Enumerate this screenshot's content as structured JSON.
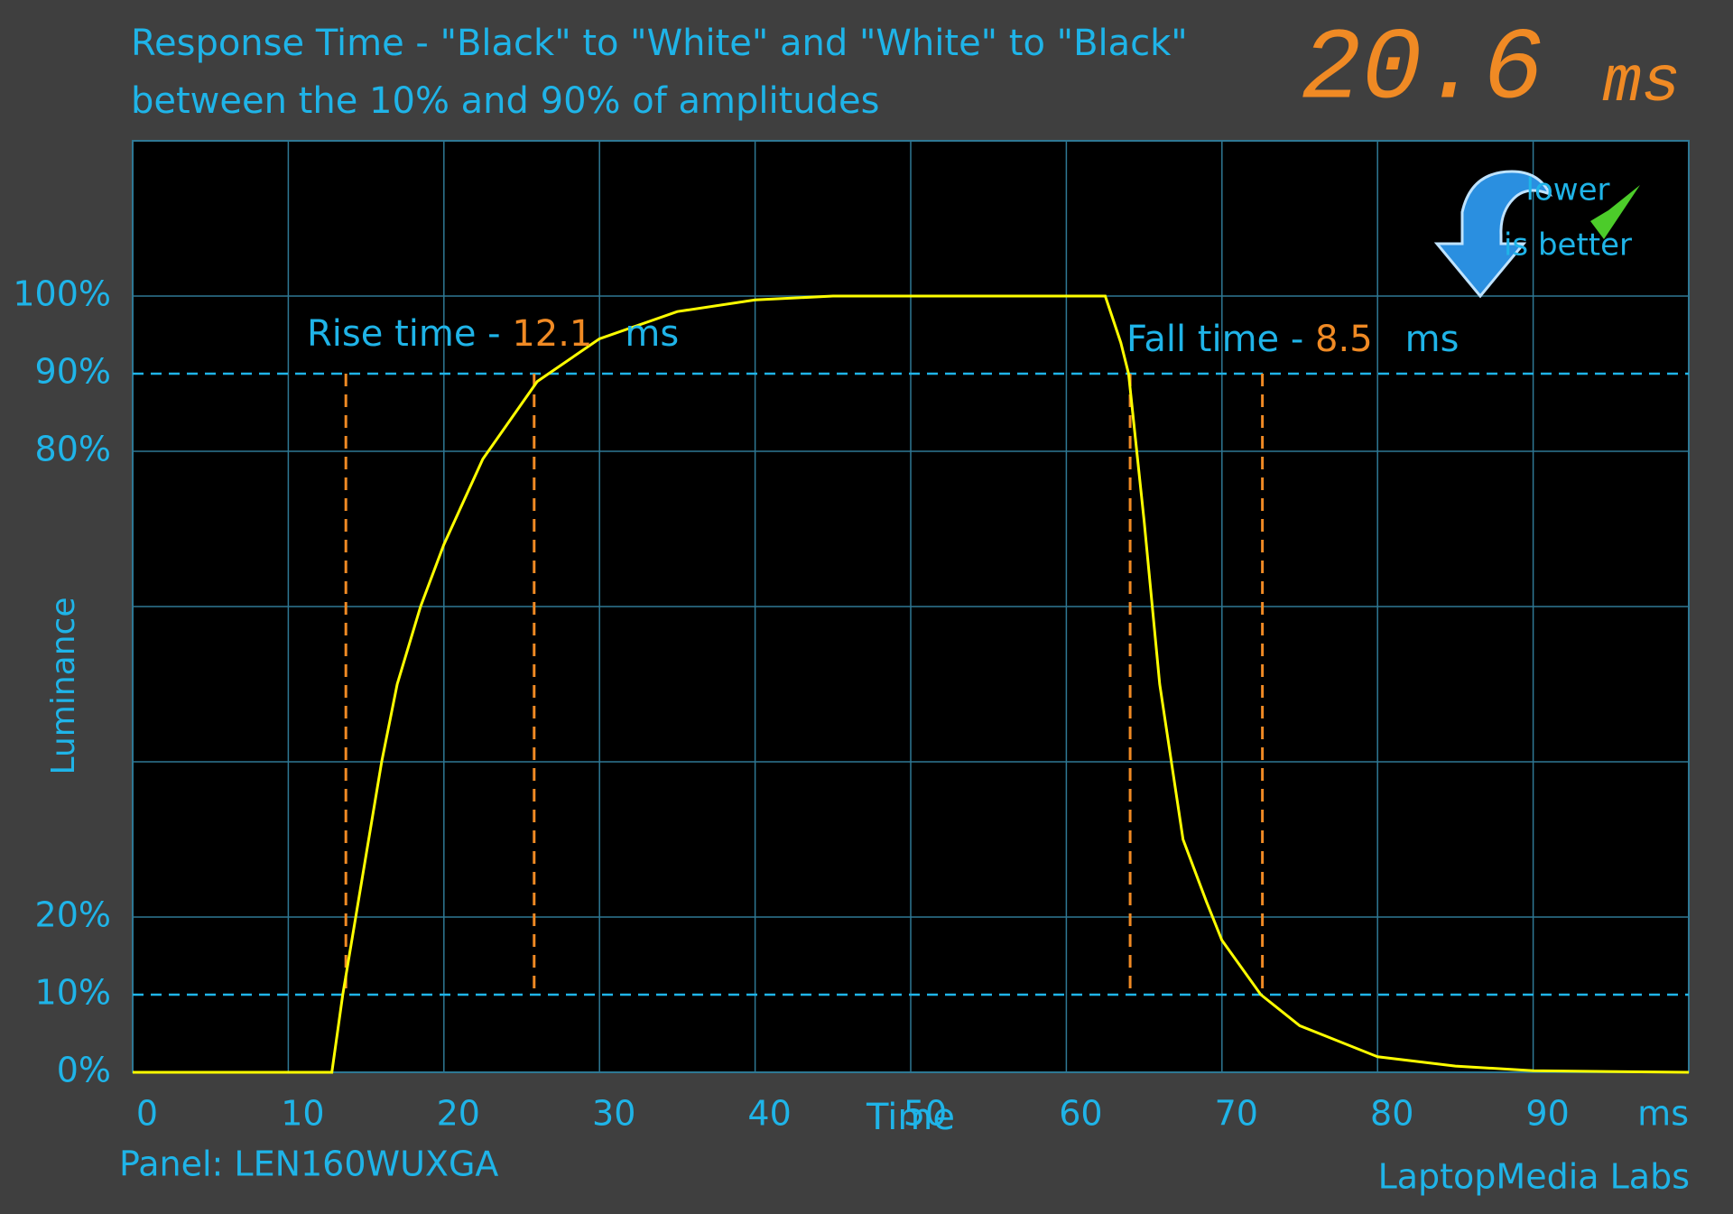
{
  "chart_data": {
    "type": "line",
    "title": "Response Time - \"Black\" to \"White\" and \"White\" to \"Black\"",
    "subtitle": "between the 10% and 90% of amplitudes",
    "result": {
      "value": 20.6,
      "unit": "ms"
    },
    "badge": [
      "lower",
      "is better"
    ],
    "xlabel": "Time",
    "xunit": "ms",
    "ylabel": "Luminance",
    "panel": "Panel: LEN160WUXGA",
    "credit": "LaptopMedia Labs",
    "xlim": [
      0,
      100
    ],
    "ylim": [
      0,
      120
    ],
    "xticks": [
      0,
      10,
      20,
      30,
      40,
      50,
      60,
      70,
      80,
      90
    ],
    "xgrid": [
      0,
      10,
      20,
      30,
      40,
      50,
      60,
      70,
      80,
      90,
      100
    ],
    "yticks": [
      {
        "value": 0,
        "label": "0%"
      },
      {
        "value": 10,
        "label": "10%"
      },
      {
        "value": 20,
        "label": "20%"
      },
      {
        "value": 80,
        "label": "80%"
      },
      {
        "value": 90,
        "label": "90%"
      },
      {
        "value": 100,
        "label": "100%"
      }
    ],
    "ygrid": [
      0,
      20,
      40,
      60,
      80,
      100
    ],
    "reference_lines": [
      10,
      90
    ],
    "grid": true,
    "series": [
      {
        "name": "Luminance",
        "color": "#ffff00",
        "x": [
          0,
          12.8,
          13.5,
          14.5,
          16,
          17,
          18.5,
          20,
          22.5,
          26,
          30,
          35,
          40,
          45,
          62.5,
          63.5,
          64,
          65,
          66,
          67.5,
          69,
          70,
          72.5,
          75,
          80,
          85,
          90,
          100
        ],
        "values": [
          0,
          0,
          10,
          22,
          40,
          50,
          60,
          68,
          79,
          89,
          94.5,
          98,
          99.5,
          100,
          100,
          94,
          90,
          71,
          50,
          30,
          22,
          17,
          10,
          6,
          2,
          0.8,
          0.2,
          0
        ]
      }
    ],
    "rise": {
      "label": "Rise time - ",
      "value": 12.1,
      "unit": "ms",
      "start": 13.7,
      "end": 25.8
    },
    "fall": {
      "label": "Fall time - ",
      "value": 8.5,
      "unit": "ms",
      "start": 64.1,
      "end": 72.6
    }
  }
}
